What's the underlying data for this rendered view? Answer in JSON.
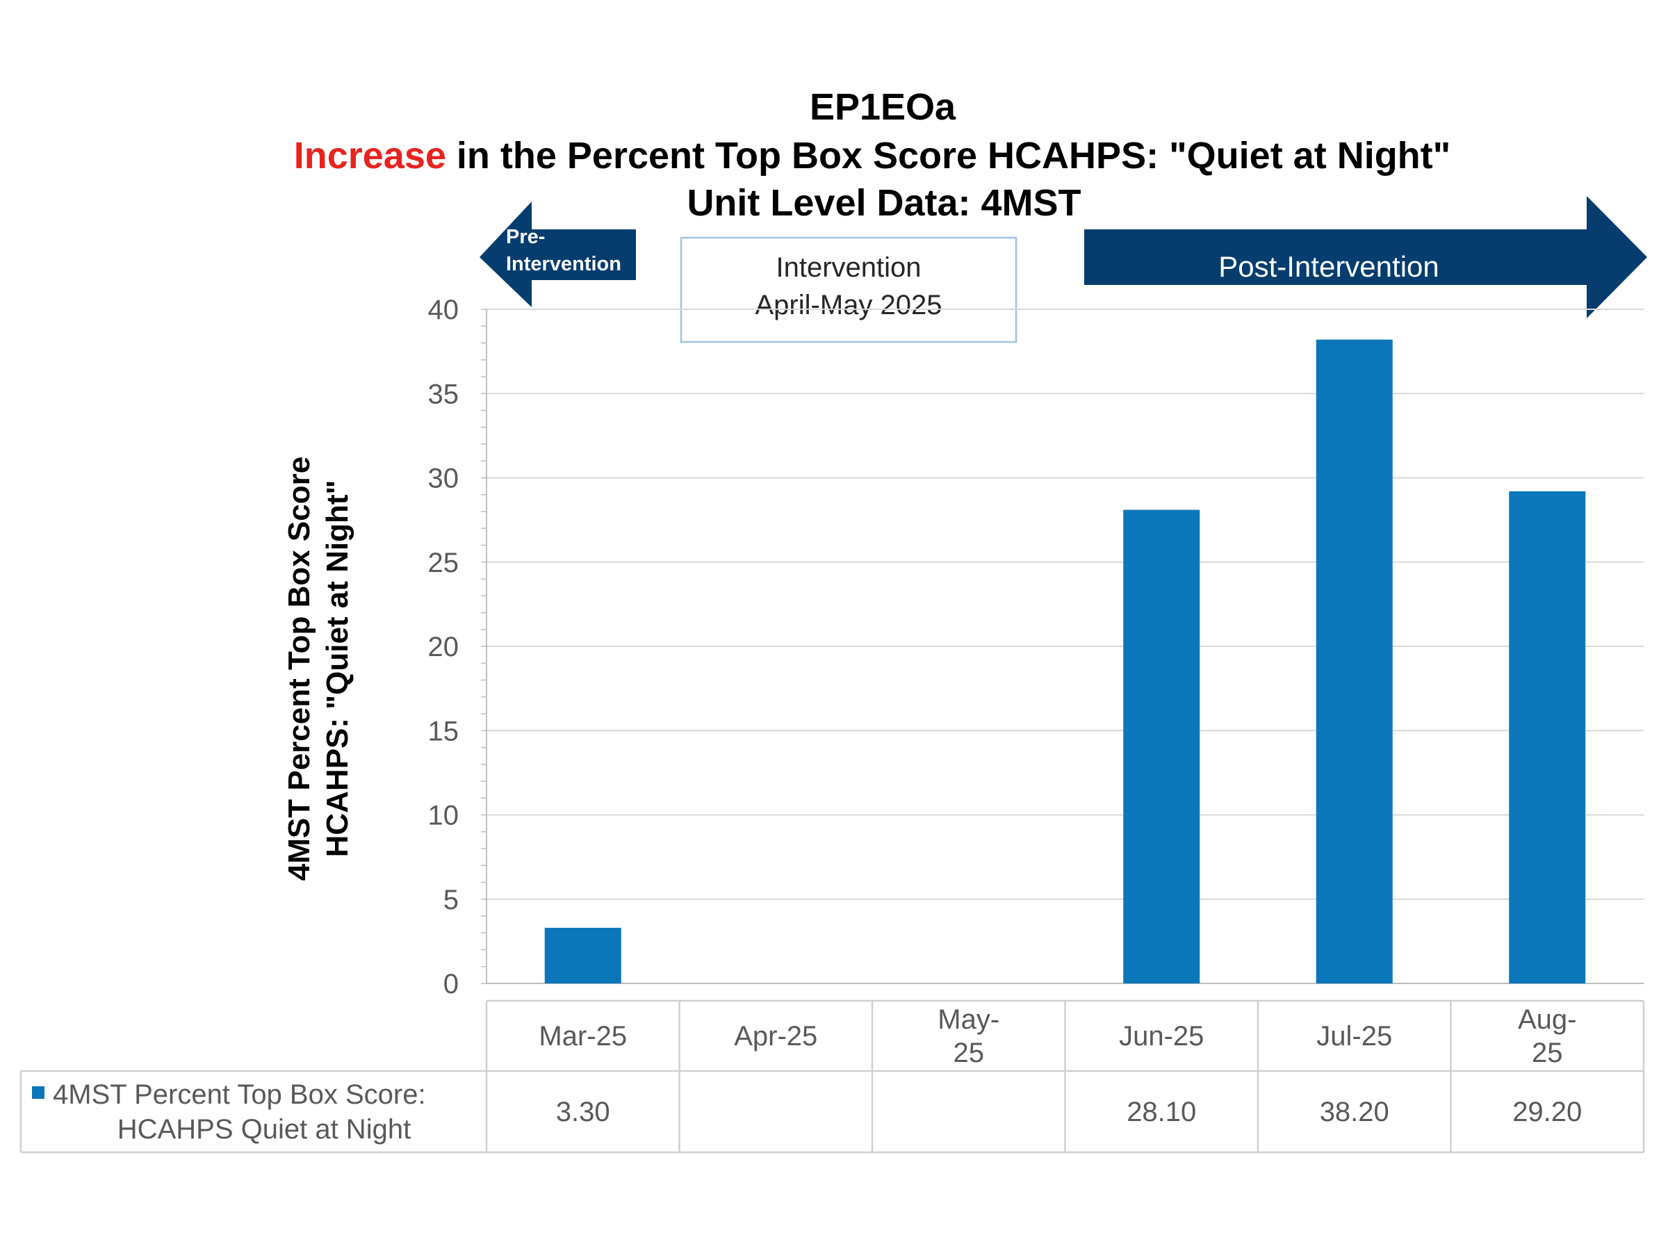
{
  "title": {
    "line1": "EP1EOa",
    "line2_highlight": "Increase",
    "line2_rest": " in the Percent Top Box Score HCAHPS: \"Quiet at Night\"",
    "line3": "Unit Level Data: 4MST"
  },
  "annotations": {
    "pre_label_1": "Pre-",
    "pre_label_2": "Intervention",
    "intervention_line1": "Intervention",
    "intervention_line2": "April-May 2025",
    "post_label": "Post-Intervention"
  },
  "colors": {
    "bar": "#0B77BA",
    "arrow": "#063D6E",
    "highlight": "#E8231F",
    "grid": "#D9D9D9",
    "text": "#595959",
    "box_border": "#9DC3E6"
  },
  "chart_data": {
    "type": "bar",
    "categories": [
      "Mar-25",
      "Apr-25",
      "May-25",
      "Jun-25",
      "Jul-25",
      "Aug-25"
    ],
    "category_lines": [
      [
        "Mar-25"
      ],
      [
        "Apr-25"
      ],
      [
        "May-",
        "25"
      ],
      [
        "Jun-25"
      ],
      [
        "Jul-25"
      ],
      [
        "Aug-",
        "25"
      ]
    ],
    "series": [
      {
        "name": "4MST Percent Top Box Score: HCAHPS Quiet at Night",
        "legend_lines": [
          "4MST Percent Top Box Score:",
          "HCAHPS Quiet at Night"
        ],
        "values": [
          3.3,
          null,
          null,
          28.1,
          38.2,
          29.2
        ],
        "value_labels": [
          "3.30",
          "",
          "",
          "28.10",
          "38.20",
          "29.20"
        ]
      }
    ],
    "ylabel_line1": "4MST Percent Top Box Score",
    "ylabel_line2": "HCAHPS: \"Quiet at Night\"",
    "ylim": [
      0,
      40
    ],
    "yticks": [
      0,
      5,
      10,
      15,
      20,
      25,
      30,
      35,
      40
    ],
    "grid": true,
    "data_table": true
  }
}
